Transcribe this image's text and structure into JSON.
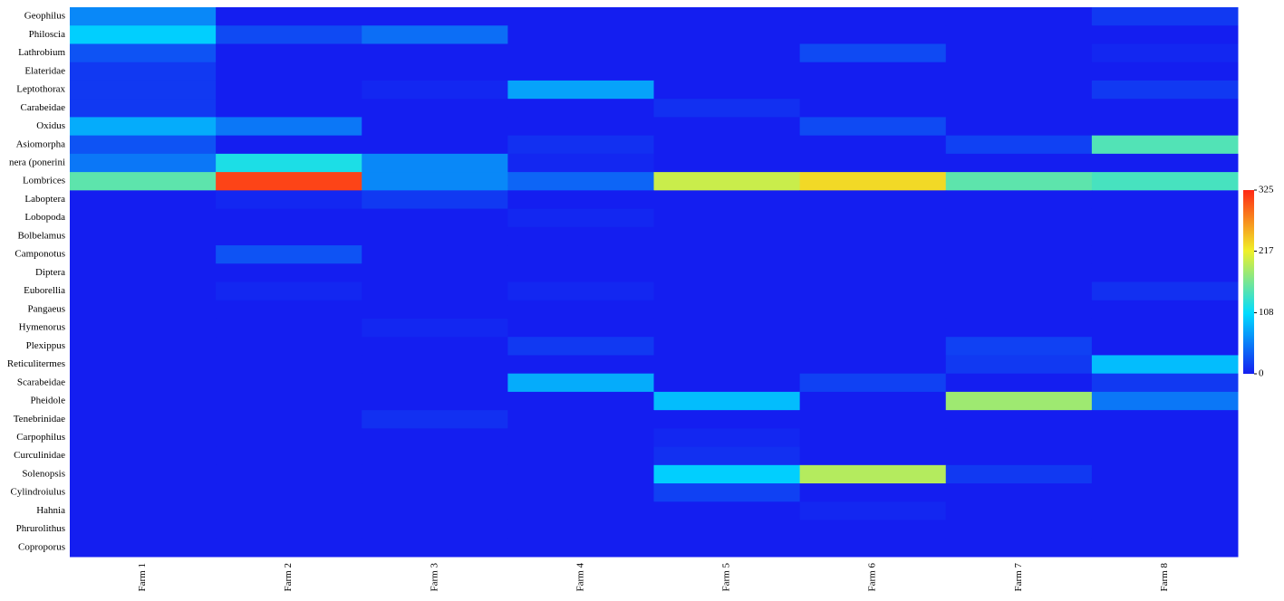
{
  "chart_data": {
    "type": "heatmap",
    "rows": [
      "Geophilus",
      "Philoscia",
      "Lathrobium",
      "Elateridae",
      "Leptothorax",
      "Carabeidae",
      "Oxidus",
      "Asiomorpha",
      "nera (ponerini",
      "Lombrices",
      "Laboptera",
      "Lobopoda",
      "Bolbelamus",
      "Camponotus",
      "Diptera",
      "Euborellia",
      "Pangaeus",
      "Hymenorus",
      "Plexippus",
      "Reticulitermes",
      "Scarabeidae",
      "Pheidole",
      "Tenebrinidae",
      "Carpophilus",
      "Curculinidae",
      "Solenopsis",
      "Cylindroiulus",
      "Hahnia",
      "Phrurolithus",
      "Coproporus"
    ],
    "categories": [
      "Farm 1",
      "Farm 2",
      "Farm 3",
      "Farm 4",
      "Farm 5",
      "Farm 6",
      "Farm 7",
      "Farm 8"
    ],
    "values": [
      [
        60,
        0,
        0,
        0,
        0,
        0,
        0,
        15
      ],
      [
        100,
        25,
        45,
        0,
        0,
        0,
        0,
        0
      ],
      [
        30,
        0,
        0,
        0,
        0,
        25,
        0,
        5
      ],
      [
        15,
        0,
        0,
        0,
        0,
        0,
        0,
        0
      ],
      [
        15,
        0,
        5,
        75,
        0,
        0,
        0,
        15
      ],
      [
        15,
        0,
        0,
        0,
        10,
        0,
        0,
        0
      ],
      [
        80,
        50,
        0,
        0,
        0,
        25,
        0,
        0
      ],
      [
        30,
        0,
        0,
        10,
        0,
        0,
        20,
        145
      ],
      [
        50,
        120,
        60,
        5,
        0,
        0,
        0,
        0
      ],
      [
        150,
        310,
        60,
        40,
        200,
        230,
        150,
        140
      ],
      [
        0,
        5,
        15,
        0,
        0,
        0,
        0,
        0
      ],
      [
        0,
        0,
        0,
        5,
        0,
        0,
        0,
        0
      ],
      [
        0,
        0,
        0,
        0,
        0,
        0,
        0,
        0
      ],
      [
        0,
        30,
        0,
        0,
        0,
        0,
        0,
        0
      ],
      [
        0,
        0,
        0,
        0,
        0,
        0,
        0,
        0
      ],
      [
        0,
        5,
        0,
        5,
        0,
        0,
        0,
        10
      ],
      [
        0,
        0,
        0,
        0,
        0,
        0,
        0,
        0
      ],
      [
        0,
        0,
        5,
        0,
        0,
        0,
        0,
        0
      ],
      [
        0,
        0,
        0,
        15,
        0,
        0,
        20,
        0
      ],
      [
        0,
        0,
        0,
        0,
        0,
        0,
        15,
        90
      ],
      [
        0,
        0,
        0,
        80,
        0,
        20,
        0,
        15
      ],
      [
        0,
        0,
        0,
        0,
        90,
        0,
        180,
        50
      ],
      [
        0,
        0,
        10,
        0,
        0,
        0,
        0,
        0
      ],
      [
        0,
        0,
        0,
        0,
        5,
        0,
        0,
        0
      ],
      [
        0,
        0,
        0,
        0,
        10,
        0,
        0,
        0
      ],
      [
        0,
        0,
        0,
        0,
        100,
        190,
        15,
        0
      ],
      [
        0,
        0,
        0,
        0,
        20,
        0,
        0,
        0
      ],
      [
        0,
        0,
        0,
        0,
        0,
        5,
        0,
        0
      ],
      [
        0,
        0,
        0,
        0,
        0,
        0,
        0,
        0
      ],
      [
        0,
        0,
        0,
        0,
        0,
        0,
        0,
        0
      ]
    ],
    "zlim": [
      0,
      325
    ],
    "zticks": [
      0,
      108,
      217,
      325
    ]
  }
}
